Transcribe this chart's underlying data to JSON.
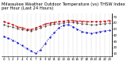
{
  "title": "Milwaukee Weather Outdoor Temperature (vs) THSW Index per Hour (Last 24 Hours)",
  "hours": [
    0,
    1,
    2,
    3,
    4,
    5,
    6,
    7,
    8,
    9,
    10,
    11,
    12,
    13,
    14,
    15,
    16,
    17,
    18,
    19,
    20,
    21,
    22,
    23
  ],
  "temp": [
    62,
    60,
    57,
    54,
    52,
    50,
    49,
    52,
    55,
    58,
    60,
    61,
    62,
    63,
    64,
    64,
    63,
    63,
    62,
    62,
    62,
    62,
    63,
    64
  ],
  "thsw": [
    38,
    35,
    32,
    28,
    23,
    18,
    14,
    10,
    16,
    26,
    36,
    44,
    52,
    56,
    57,
    54,
    50,
    46,
    44,
    43,
    44,
    46,
    47,
    48
  ],
  "black": [
    57,
    55,
    53,
    51,
    49,
    48,
    47,
    49,
    52,
    55,
    57,
    58,
    59,
    60,
    61,
    61,
    60,
    59,
    58,
    57,
    57,
    58,
    59,
    60
  ],
  "temp_color": "#cc0000",
  "thsw_color": "#0000cc",
  "black_color": "#000000",
  "bg_color": "#ffffff",
  "grid_color": "#888888",
  "ylim_min": 5,
  "ylim_max": 75,
  "ytick_values": [
    10,
    20,
    30,
    40,
    50,
    60,
    70
  ],
  "title_fontsize": 3.8,
  "tick_fontsize": 2.8
}
